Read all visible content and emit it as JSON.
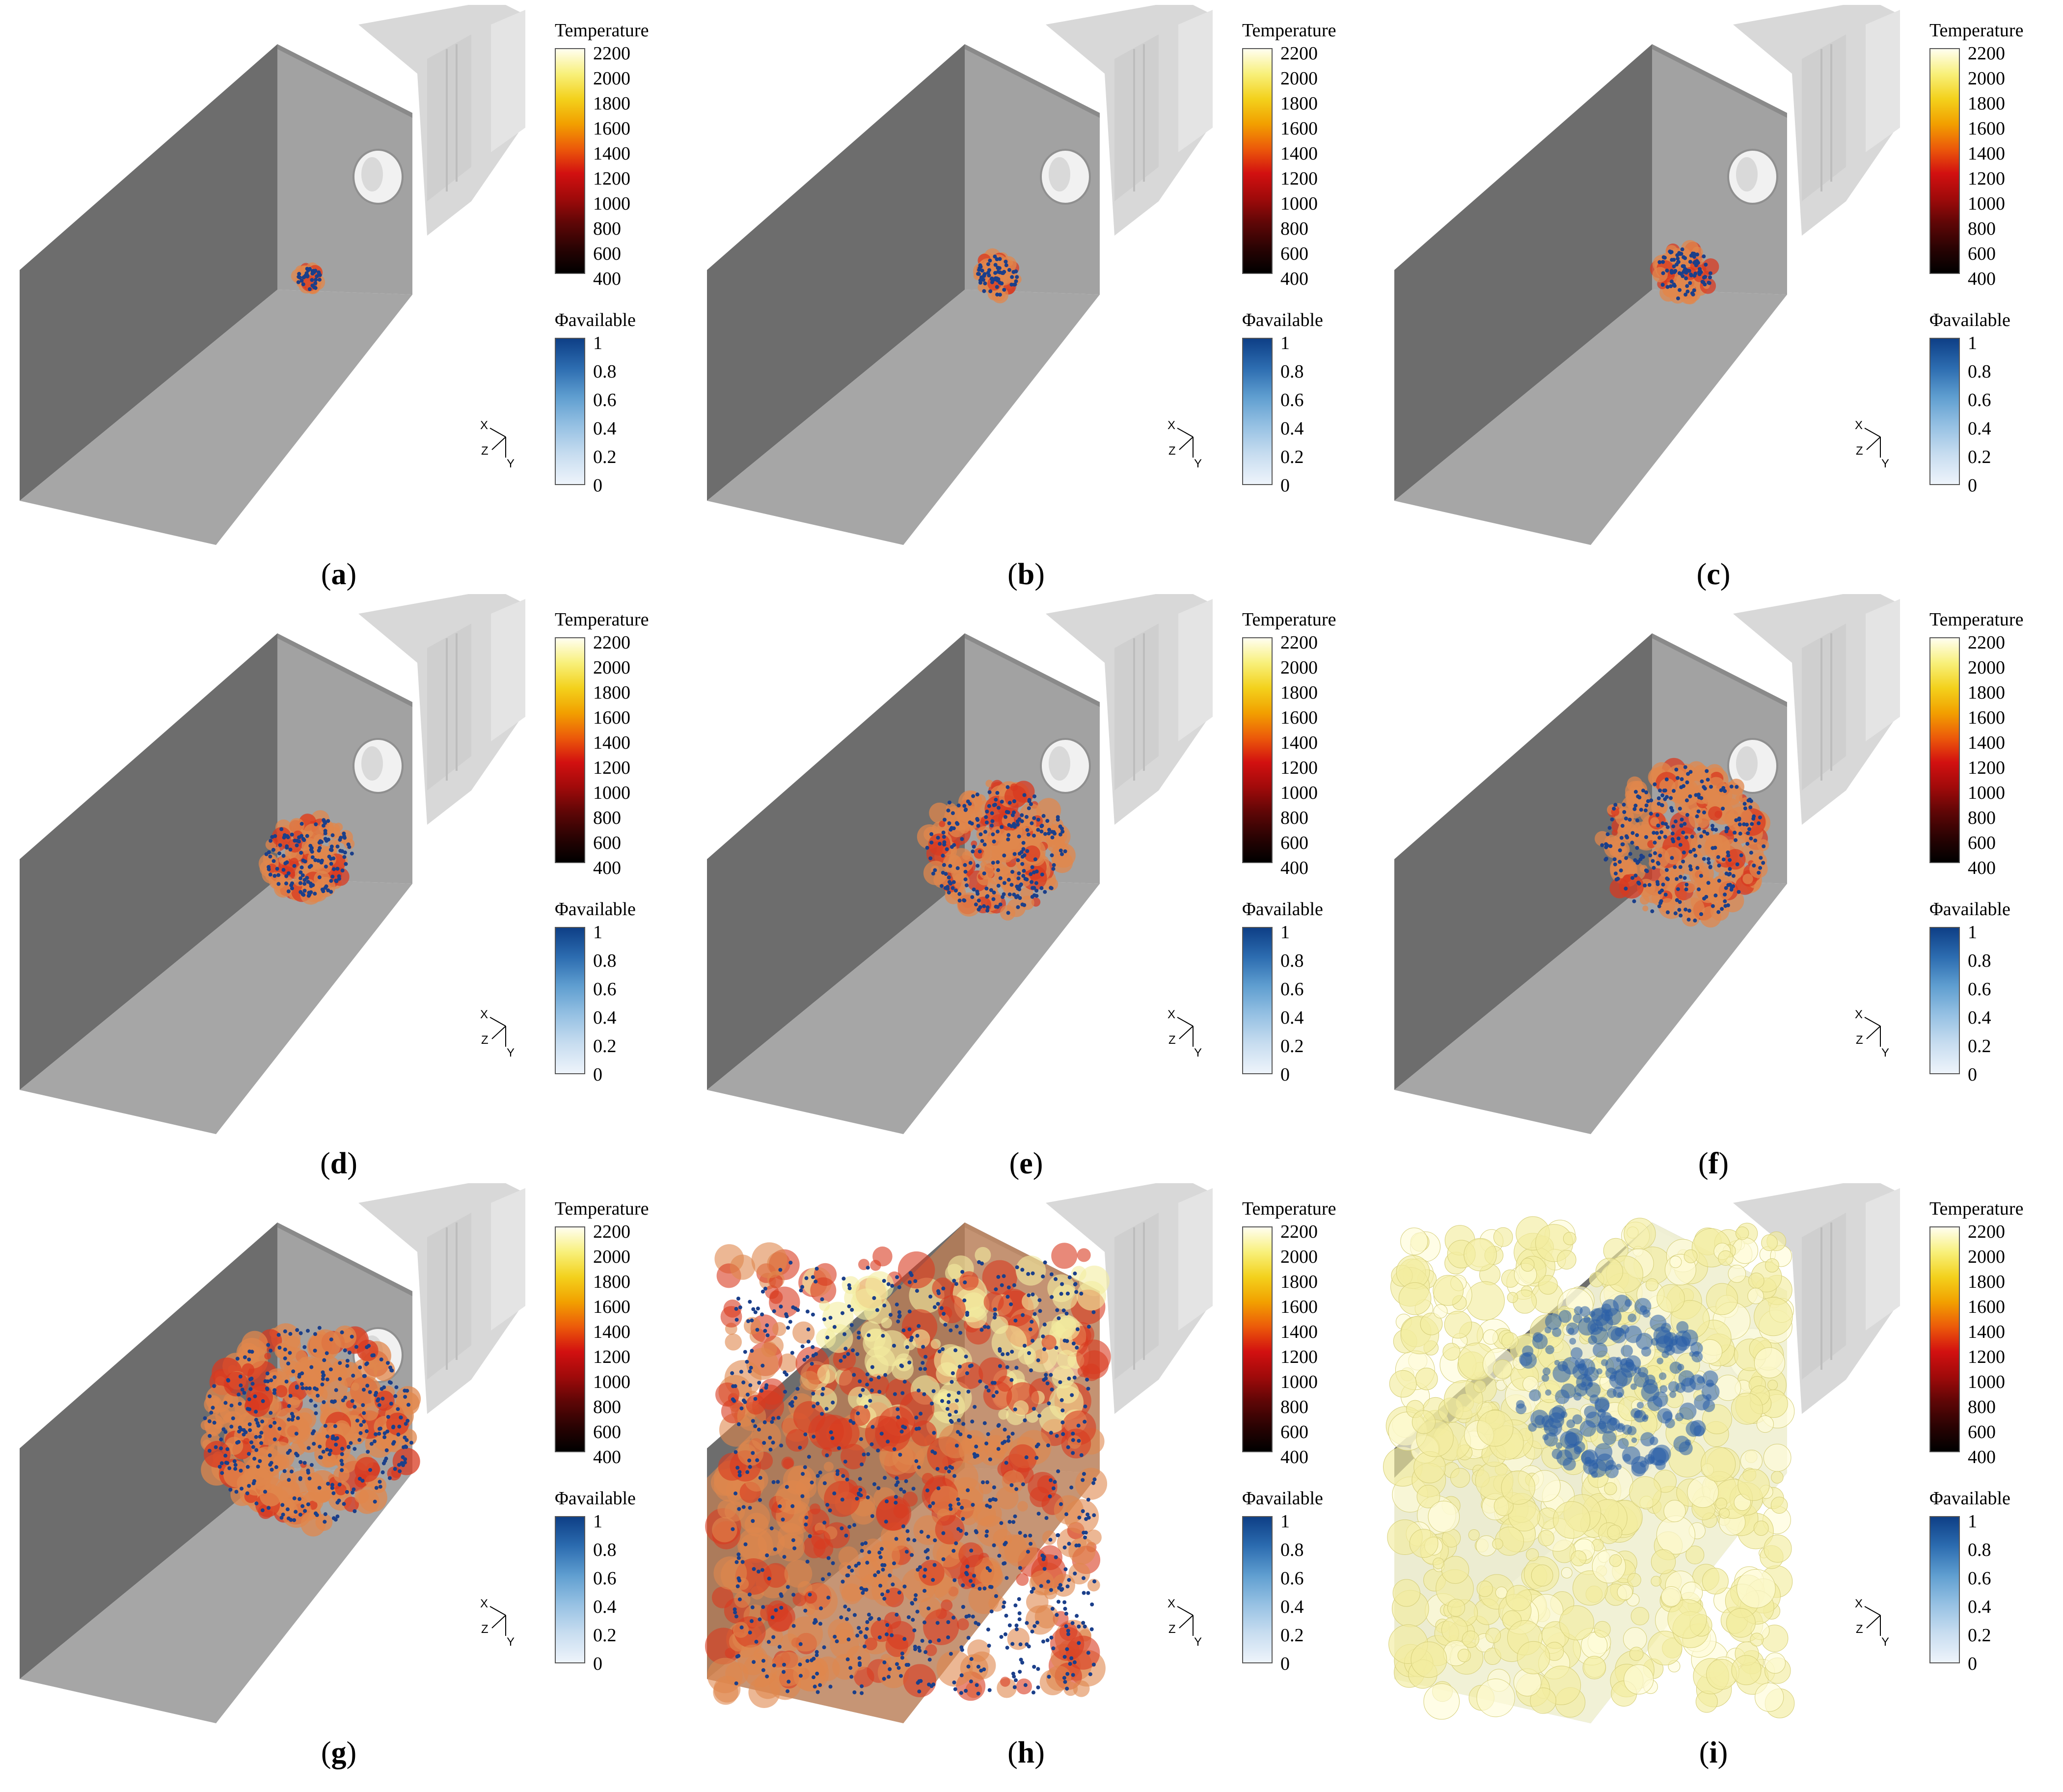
{
  "temperature_legend": {
    "title": "Temperature",
    "ticks": [
      "2200",
      "2000",
      "1800",
      "1600",
      "1400",
      "1200",
      "1000",
      "800",
      "600",
      "400"
    ],
    "colors_top_to_bottom": [
      "#fffef0",
      "#f8f07a",
      "#f3d11c",
      "#f2a000",
      "#ec5a0a",
      "#d21010",
      "#a00a0a",
      "#5e0606",
      "#2a0303",
      "#000000"
    ]
  },
  "phi_legend": {
    "title": "Φavailable",
    "ticks": [
      "1",
      "0.8",
      "0.6",
      "0.4",
      "0.2",
      "0"
    ],
    "colors_top_to_bottom": [
      "#0e3f86",
      "#2c6cb0",
      "#5f9ed0",
      "#96c1e3",
      "#c8ddf0",
      "#eef4fb"
    ]
  },
  "axis_triad": {
    "x": "X",
    "y": "Y",
    "z": "Z"
  },
  "panels": [
    {
      "label": "a",
      "caption_open": "(",
      "caption_close": ")",
      "flame_extent": 0.02
    },
    {
      "label": "b",
      "caption_open": "(",
      "caption_close": ")",
      "flame_extent": 0.07
    },
    {
      "label": "c",
      "caption_open": "(",
      "caption_close": ")",
      "flame_extent": 0.11
    },
    {
      "label": "d",
      "caption_open": "(",
      "caption_close": ")",
      "flame_extent": 0.2
    },
    {
      "label": "e",
      "caption_open": "(",
      "caption_close": ")",
      "flame_extent": 0.35
    },
    {
      "label": "f",
      "caption_open": "(",
      "caption_close": ")",
      "flame_extent": 0.42
    },
    {
      "label": "g",
      "caption_open": "(",
      "caption_close": ")",
      "flame_extent": 0.55
    },
    {
      "label": "h",
      "caption_open": "(",
      "caption_close": ")",
      "flame_extent": 1.0
    },
    {
      "label": "i",
      "caption_open": "(",
      "caption_close": ")",
      "flame_extent": 1.0
    }
  ],
  "colors": {
    "wall_dark": "#6d6d6d",
    "wall_mid": "#9a9a9a",
    "floor": "#a6a6a6",
    "duct": "#d8d8d8",
    "flame_orange": "#e0874c",
    "flame_red": "#d83a20",
    "particle_blue": "#1b3f8a",
    "hot_yellow": "#f3eca0"
  }
}
